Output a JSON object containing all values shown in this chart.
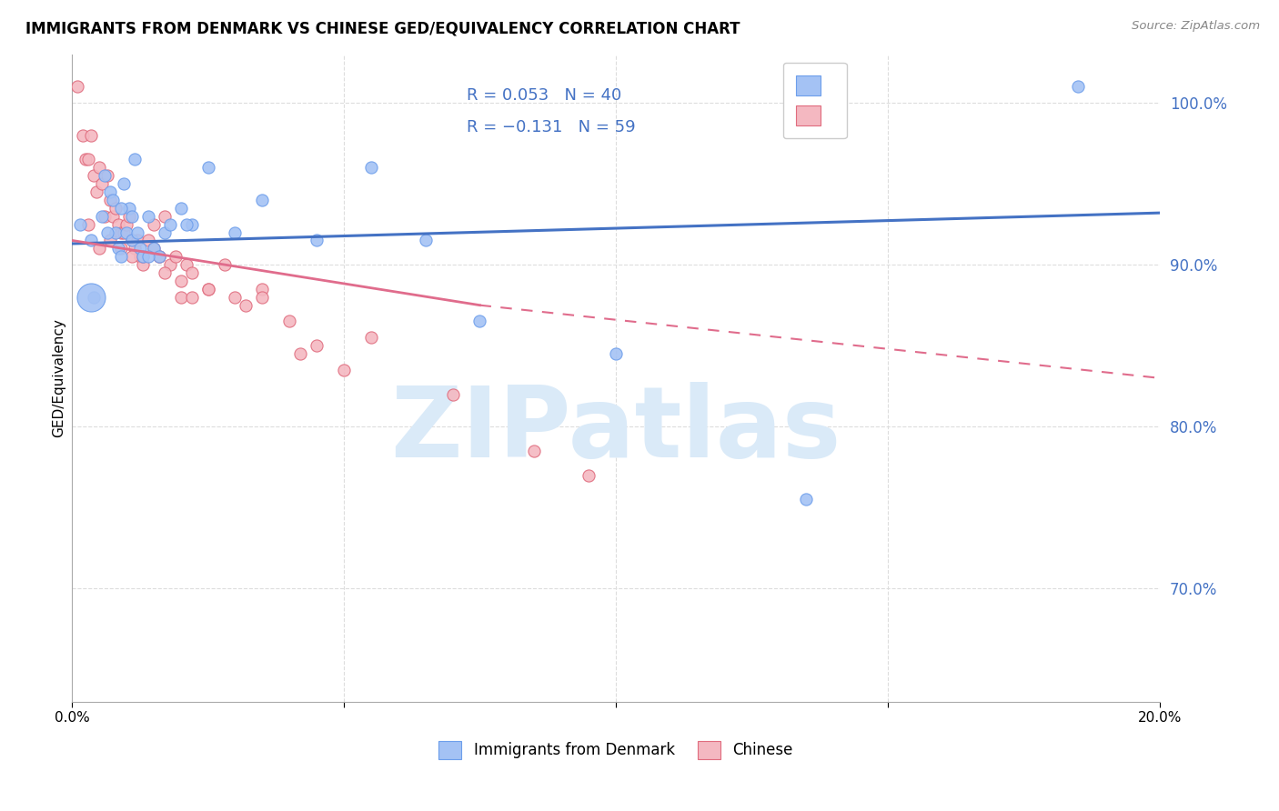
{
  "title": "IMMIGRANTS FROM DENMARK VS CHINESE GED/EQUIVALENCY CORRELATION CHART",
  "source": "Source: ZipAtlas.com",
  "ylabel": "GED/Equivalency",
  "xmin": 0.0,
  "xmax": 20.0,
  "ymin": 63.0,
  "ymax": 103.0,
  "color_blue": "#a4c2f4",
  "color_pink": "#f4b8c1",
  "color_blue_edge": "#6d9eeb",
  "color_pink_edge": "#e06c7e",
  "color_blue_line": "#4472c4",
  "color_pink_line": "#e06c8c",
  "watermark_color": "#daeaf8",
  "legend_label1": "Immigrants from Denmark",
  "legend_label2": "Chinese",
  "blue_scatter_x": [
    0.15,
    0.4,
    0.55,
    0.6,
    0.7,
    0.75,
    0.8,
    0.85,
    0.9,
    0.95,
    1.0,
    1.05,
    1.1,
    1.15,
    1.2,
    1.25,
    1.3,
    1.4,
    1.5,
    1.6,
    1.7,
    1.8,
    2.0,
    2.2,
    2.5,
    3.0,
    3.5,
    4.5,
    5.5,
    6.5,
    7.5,
    10.0,
    13.5,
    0.35,
    0.65,
    0.9,
    1.1,
    1.4,
    2.1,
    18.5
  ],
  "blue_scatter_y": [
    92.5,
    88.0,
    93.0,
    95.5,
    94.5,
    94.0,
    92.0,
    91.0,
    90.5,
    95.0,
    92.0,
    93.5,
    91.5,
    96.5,
    92.0,
    91.0,
    90.5,
    93.0,
    91.0,
    90.5,
    92.0,
    92.5,
    93.5,
    92.5,
    96.0,
    92.0,
    94.0,
    91.5,
    96.0,
    91.5,
    86.5,
    84.5,
    75.5,
    91.5,
    92.0,
    93.5,
    93.0,
    90.5,
    92.5,
    101.0
  ],
  "blue_scatter_size_large": [
    37
  ],
  "blue_scatter_large_x": [
    0.35
  ],
  "blue_scatter_large_y": [
    88.0
  ],
  "pink_scatter_x": [
    0.1,
    0.2,
    0.25,
    0.3,
    0.35,
    0.4,
    0.45,
    0.5,
    0.55,
    0.6,
    0.65,
    0.7,
    0.75,
    0.8,
    0.85,
    0.9,
    0.95,
    1.0,
    1.05,
    1.1,
    1.15,
    1.2,
    1.25,
    1.3,
    1.4,
    1.5,
    1.6,
    1.7,
    1.8,
    1.9,
    2.0,
    2.1,
    2.2,
    2.5,
    2.8,
    3.0,
    3.5,
    4.0,
    5.0,
    0.3,
    0.5,
    0.7,
    0.9,
    1.1,
    1.3,
    1.5,
    1.7,
    2.0,
    2.5,
    3.5,
    4.5,
    5.5,
    7.0,
    8.5,
    9.5,
    2.2,
    1.6,
    3.2,
    4.2
  ],
  "pink_scatter_y": [
    101.0,
    98.0,
    96.5,
    96.5,
    98.0,
    95.5,
    94.5,
    96.0,
    95.0,
    93.0,
    95.5,
    94.0,
    93.0,
    93.5,
    92.5,
    92.0,
    92.0,
    92.5,
    93.0,
    91.5,
    91.0,
    91.5,
    90.5,
    90.0,
    91.5,
    92.5,
    90.5,
    93.0,
    90.0,
    90.5,
    89.0,
    90.0,
    89.5,
    88.5,
    90.0,
    88.0,
    88.5,
    86.5,
    83.5,
    92.5,
    91.0,
    91.5,
    91.0,
    90.5,
    90.5,
    91.0,
    89.5,
    88.0,
    88.5,
    88.0,
    85.0,
    85.5,
    82.0,
    78.5,
    77.0,
    88.0,
    90.5,
    87.5,
    84.5
  ],
  "blue_line_x0": 0.0,
  "blue_line_x1": 20.0,
  "blue_line_y0": 91.3,
  "blue_line_y1": 93.2,
  "pink_solid_x0": 0.0,
  "pink_solid_x1": 7.5,
  "pink_solid_y0": 91.5,
  "pink_solid_y1": 87.5,
  "pink_dash_x0": 7.5,
  "pink_dash_x1": 20.0,
  "pink_dash_y0": 87.5,
  "pink_dash_y1": 83.0,
  "grid_color": "#dddddd",
  "background_color": "#ffffff",
  "right_yticks": [
    70.0,
    80.0,
    90.0,
    100.0
  ],
  "right_ytick_labels": [
    "70.0%",
    "80.0%",
    "90.0%",
    "100.0%"
  ]
}
